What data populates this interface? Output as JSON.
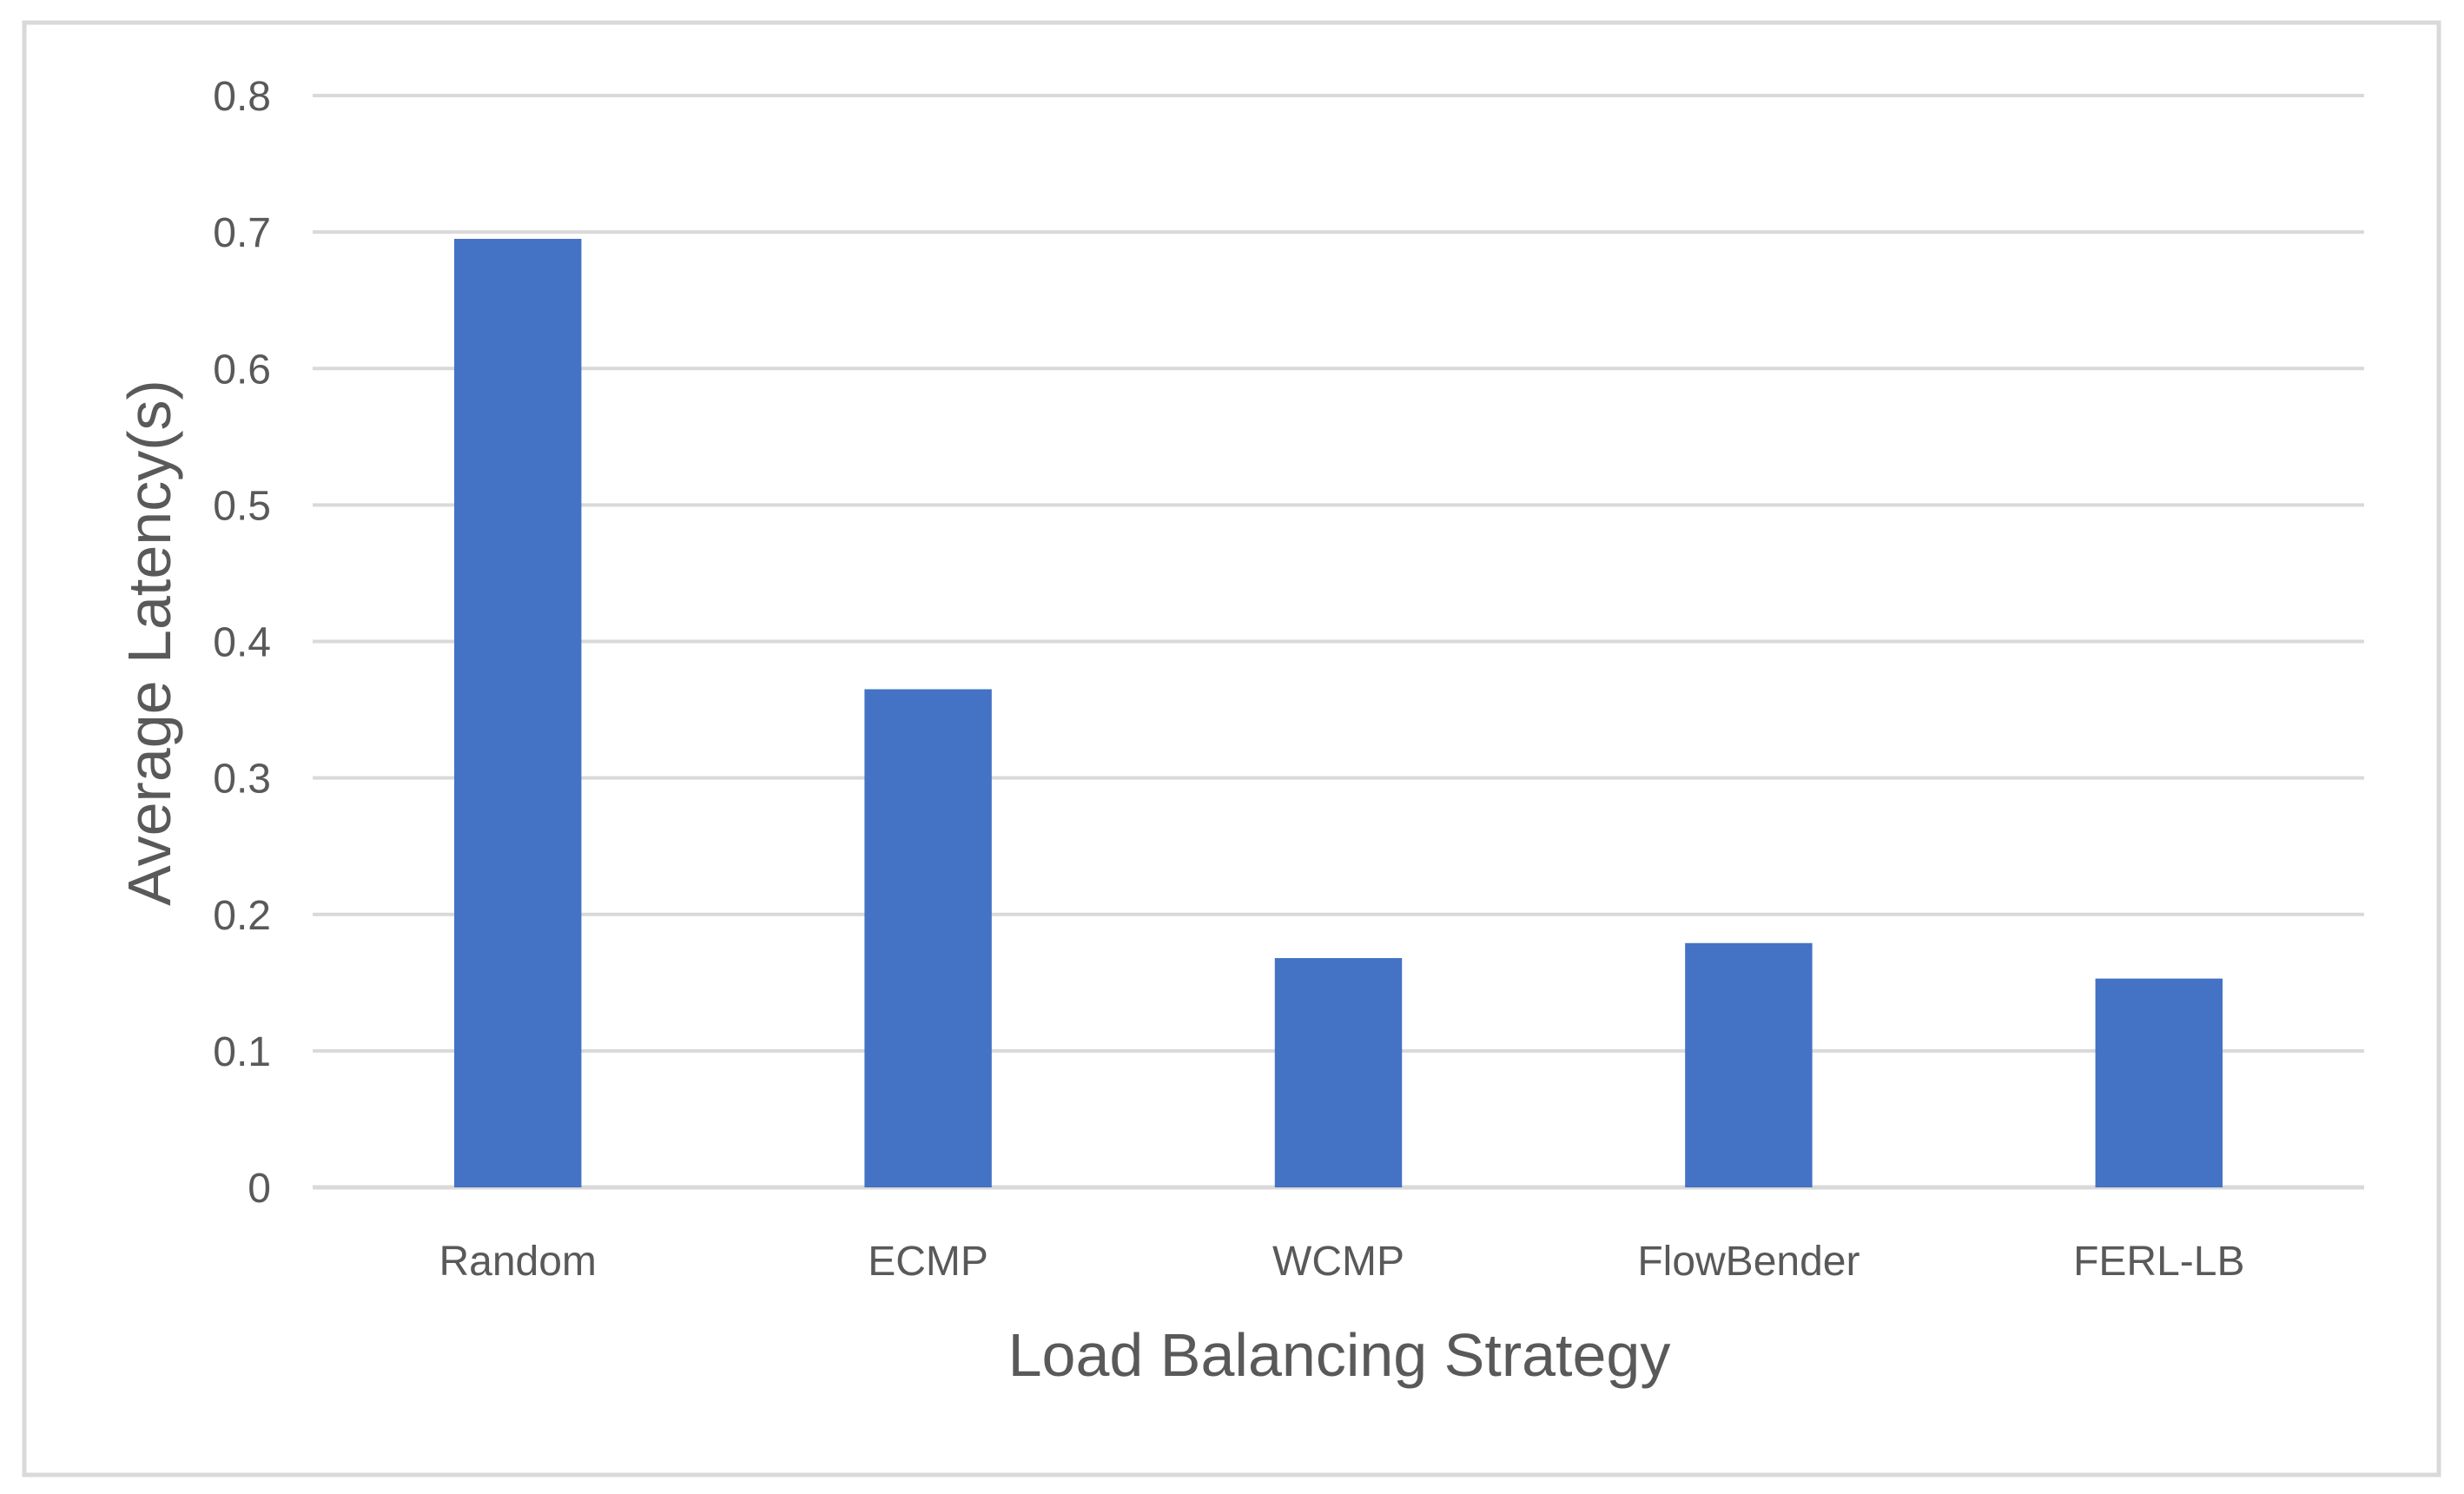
{
  "chart_data": {
    "type": "bar",
    "title": "",
    "xlabel": "Load Balancing Strategy",
    "ylabel": "Average Latency(s)",
    "categories": [
      "Random",
      "ECMP",
      "WCMP",
      "FlowBender",
      "FERL-LB"
    ],
    "values": [
      0.695,
      0.365,
      0.168,
      0.179,
      0.153
    ],
    "ylim": [
      0,
      0.8
    ],
    "yticks": [
      "0",
      "0.1",
      "0.2",
      "0.3",
      "0.4",
      "0.5",
      "0.6",
      "0.7",
      "0.8"
    ],
    "grid": true,
    "legend": "none",
    "bar_color": "#4472C4",
    "grid_color": "#D9D9D9",
    "text_color": "#595959",
    "border_color": "#D9D9D9"
  }
}
